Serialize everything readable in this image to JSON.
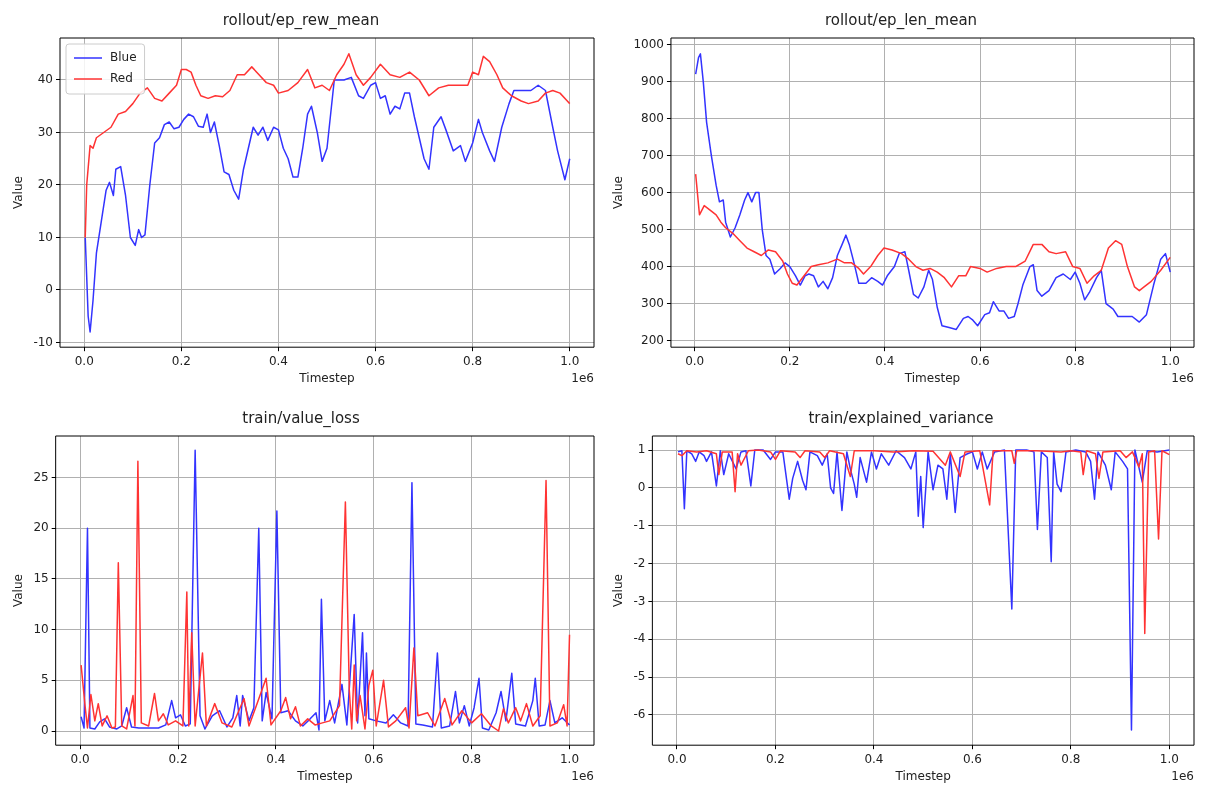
{
  "chart_data": [
    {
      "type": "line",
      "title": "rollout/ep_rew_mean",
      "xlabel": "Timestep",
      "ylabel": "Value",
      "annotations": [
        "1e6"
      ],
      "grid": true,
      "legend": "top left",
      "xlim": [
        -0.05,
        1.05
      ],
      "xticks": [
        {
          "value": 0,
          "label": "0.0"
        },
        {
          "value": 0.2,
          "label": "0.2"
        },
        {
          "value": 0.4,
          "label": "0.4"
        },
        {
          "value": 0.6,
          "label": "0.6"
        },
        {
          "value": 0.8,
          "label": "0.8"
        },
        {
          "value": 1,
          "label": "1.0"
        }
      ],
      "ylim": [
        -10.9,
        48
      ],
      "yticks": [
        -10,
        0,
        10,
        20,
        30,
        40
      ],
      "series": [
        {
          "name": "Blue",
          "color": "#3333ff",
          "x": [
            0.002,
            0.008,
            0.012,
            0.018,
            0.025,
            0.035,
            0.045,
            0.052,
            0.06,
            0.065,
            0.075,
            0.085,
            0.095,
            0.105,
            0.112,
            0.118,
            0.125,
            0.135,
            0.145,
            0.155,
            0.165,
            0.175,
            0.185,
            0.195,
            0.205,
            0.215,
            0.225,
            0.235,
            0.245,
            0.253,
            0.26,
            0.268,
            0.278,
            0.288,
            0.298,
            0.308,
            0.318,
            0.328,
            0.338,
            0.348,
            0.358,
            0.368,
            0.378,
            0.39,
            0.4,
            0.41,
            0.42,
            0.43,
            0.44,
            0.45,
            0.46,
            0.468,
            0.48,
            0.49,
            0.5,
            0.515,
            0.535,
            0.55,
            0.565,
            0.575,
            0.59,
            0.6,
            0.61,
            0.62,
            0.63,
            0.64,
            0.65,
            0.66,
            0.67,
            0.68,
            0.69,
            0.7,
            0.71,
            0.72,
            0.735,
            0.745,
            0.76,
            0.775,
            0.785,
            0.8,
            0.812,
            0.82,
            0.835,
            0.845,
            0.86,
            0.875,
            0.885,
            0.9,
            0.92,
            0.935,
            0.95,
            0.965,
            0.975,
            0.99,
            1.0
          ],
          "values": [
            10,
            -5,
            -8,
            -2,
            7,
            13,
            19,
            20.5,
            18,
            23,
            23.5,
            18,
            10,
            8.5,
            11.5,
            10,
            10.5,
            20,
            28,
            29,
            31.5,
            32,
            30.7,
            31,
            32.5,
            33.5,
            33,
            31.2,
            31,
            33.5,
            30,
            32,
            27.5,
            22.5,
            22,
            19,
            17.3,
            23,
            27,
            31,
            29.5,
            31,
            28.5,
            31,
            30.5,
            27,
            25,
            21.5,
            21.5,
            27,
            33.5,
            35,
            30,
            24.5,
            27,
            40,
            40,
            40.5,
            37,
            36.5,
            39,
            39.5,
            36.5,
            37,
            33.5,
            35,
            34.5,
            37.5,
            37.5,
            33,
            29,
            25,
            23,
            31,
            33,
            30.5,
            26.5,
            27.5,
            24.5,
            28,
            32.5,
            30,
            26.5,
            24.5,
            31,
            35.5,
            38,
            38,
            38,
            39,
            38,
            31,
            26.5,
            21,
            25
          ]
        },
        {
          "name": "Red",
          "color": "#ff3333",
          "x": [
            0.002,
            0.005,
            0.012,
            0.018,
            0.025,
            0.04,
            0.055,
            0.07,
            0.085,
            0.1,
            0.115,
            0.13,
            0.145,
            0.16,
            0.175,
            0.19,
            0.2,
            0.21,
            0.22,
            0.23,
            0.24,
            0.255,
            0.27,
            0.285,
            0.3,
            0.315,
            0.33,
            0.345,
            0.36,
            0.375,
            0.39,
            0.4,
            0.42,
            0.44,
            0.46,
            0.475,
            0.49,
            0.505,
            0.52,
            0.535,
            0.545,
            0.56,
            0.575,
            0.59,
            0.61,
            0.63,
            0.65,
            0.67,
            0.69,
            0.71,
            0.73,
            0.75,
            0.77,
            0.79,
            0.8,
            0.812,
            0.822,
            0.835,
            0.85,
            0.862,
            0.88,
            0.9,
            0.915,
            0.935,
            0.95,
            0.965,
            0.98,
            0.995,
            1.0
          ],
          "values": [
            10,
            20,
            27.5,
            27,
            29,
            30,
            31,
            33.5,
            34,
            35.5,
            37.5,
            38.5,
            36.5,
            36,
            37.5,
            39,
            42,
            42,
            41.5,
            39,
            37,
            36.5,
            37,
            36.8,
            38,
            41,
            41,
            42.5,
            41,
            39.5,
            39,
            37.5,
            38,
            39.5,
            42,
            38.5,
            39,
            38,
            41,
            43,
            45,
            41,
            39,
            40.5,
            43,
            41,
            40.5,
            41.5,
            40,
            37,
            38.5,
            39,
            39,
            39,
            41.5,
            41,
            44.5,
            43.5,
            41,
            38.5,
            37,
            36,
            35.5,
            36,
            37.5,
            38,
            37.5,
            36,
            35.5
          ]
        }
      ]
    },
    {
      "type": "line",
      "title": "rollout/ep_len_mean",
      "xlabel": "Timestep",
      "ylabel": "Value",
      "annotations": [
        "1e6"
      ],
      "grid": true,
      "xlim": [
        -0.05,
        1.05
      ],
      "xticks": [
        {
          "value": 0,
          "label": "0.0"
        },
        {
          "value": 0.2,
          "label": "0.2"
        },
        {
          "value": 0.4,
          "label": "0.4"
        },
        {
          "value": 0.6,
          "label": "0.6"
        },
        {
          "value": 0.8,
          "label": "0.8"
        },
        {
          "value": 1,
          "label": "1.0"
        }
      ],
      "ylim": [
        182,
        1018
      ],
      "yticks": [
        200,
        300,
        400,
        500,
        600,
        700,
        800,
        900,
        1000
      ],
      "series": [
        {
          "color": "#3333ff",
          "x": [
            0.002,
            0.008,
            0.012,
            0.018,
            0.025,
            0.035,
            0.045,
            0.052,
            0.06,
            0.065,
            0.075,
            0.085,
            0.095,
            0.105,
            0.112,
            0.12,
            0.128,
            0.135,
            0.142,
            0.15,
            0.158,
            0.168,
            0.18,
            0.19,
            0.2,
            0.212,
            0.222,
            0.232,
            0.24,
            0.25,
            0.26,
            0.27,
            0.28,
            0.29,
            0.3,
            0.31,
            0.318,
            0.325,
            0.335,
            0.345,
            0.36,
            0.372,
            0.385,
            0.395,
            0.405,
            0.42,
            0.43,
            0.442,
            0.45,
            0.46,
            0.47,
            0.482,
            0.492,
            0.5,
            0.51,
            0.52,
            0.535,
            0.55,
            0.565,
            0.575,
            0.585,
            0.595,
            0.61,
            0.62,
            0.628,
            0.64,
            0.65,
            0.66,
            0.672,
            0.68,
            0.69,
            0.705,
            0.712,
            0.72,
            0.73,
            0.745,
            0.76,
            0.775,
            0.79,
            0.8,
            0.81,
            0.82,
            0.83,
            0.845,
            0.855,
            0.865,
            0.88,
            0.89,
            0.905,
            0.92,
            0.935,
            0.95,
            0.965,
            0.98,
            0.99,
            1.0
          ],
          "values": [
            920,
            965,
            975,
            900,
            790,
            700,
            620,
            575,
            580,
            520,
            480,
            505,
            540,
            580,
            600,
            575,
            600,
            600,
            500,
            430,
            420,
            380,
            395,
            410,
            400,
            375,
            350,
            375,
            380,
            375,
            345,
            360,
            340,
            370,
            430,
            460,
            485,
            460,
            410,
            355,
            355,
            370,
            360,
            350,
            375,
            400,
            435,
            440,
            390,
            325,
            315,
            345,
            390,
            365,
            290,
            240,
            235,
            230,
            260,
            265,
            255,
            240,
            270,
            275,
            305,
            280,
            280,
            260,
            265,
            300,
            350,
            400,
            405,
            335,
            320,
            335,
            370,
            380,
            365,
            385,
            355,
            310,
            330,
            370,
            390,
            300,
            285,
            265,
            265,
            265,
            250,
            270,
            350,
            420,
            435,
            385
          ]
        },
        {
          "color": "#ff3333",
          "x": [
            0.002,
            0.01,
            0.02,
            0.035,
            0.045,
            0.055,
            0.065,
            0.08,
            0.095,
            0.11,
            0.125,
            0.14,
            0.155,
            0.17,
            0.185,
            0.195,
            0.205,
            0.215,
            0.23,
            0.245,
            0.26,
            0.28,
            0.3,
            0.315,
            0.33,
            0.345,
            0.355,
            0.37,
            0.385,
            0.398,
            0.415,
            0.435,
            0.45,
            0.465,
            0.48,
            0.495,
            0.51,
            0.525,
            0.54,
            0.555,
            0.57,
            0.58,
            0.6,
            0.615,
            0.635,
            0.655,
            0.675,
            0.695,
            0.712,
            0.73,
            0.745,
            0.76,
            0.78,
            0.795,
            0.81,
            0.825,
            0.84,
            0.855,
            0.87,
            0.885,
            0.898,
            0.91,
            0.925,
            0.935,
            0.945,
            0.96,
            0.98,
            1.0
          ],
          "values": [
            650,
            540,
            565,
            550,
            540,
            520,
            505,
            490,
            470,
            450,
            440,
            430,
            445,
            440,
            415,
            380,
            355,
            350,
            375,
            400,
            405,
            410,
            420,
            410,
            410,
            395,
            380,
            400,
            430,
            450,
            445,
            435,
            420,
            400,
            390,
            395,
            385,
            370,
            345,
            375,
            375,
            400,
            395,
            385,
            395,
            400,
            400,
            415,
            460,
            460,
            440,
            435,
            440,
            400,
            395,
            355,
            375,
            390,
            450,
            470,
            460,
            400,
            345,
            335,
            345,
            360,
            390,
            425
          ]
        }
      ]
    },
    {
      "type": "line",
      "title": "train/value_loss",
      "xlabel": "Timestep",
      "ylabel": "Value",
      "annotations": [
        "1e6"
      ],
      "grid": true,
      "xlim": [
        -0.05,
        1.05
      ],
      "xticks": [
        {
          "value": 0,
          "label": "0.0"
        },
        {
          "value": 0.2,
          "label": "0.2"
        },
        {
          "value": 0.4,
          "label": "0.4"
        },
        {
          "value": 0.6,
          "label": "0.6"
        },
        {
          "value": 0.8,
          "label": "0.8"
        },
        {
          "value": 1,
          "label": "1.0"
        }
      ],
      "ylim": [
        -1.4,
        29.1
      ],
      "yticks": [
        0,
        5,
        10,
        15,
        20,
        25
      ],
      "series": [
        {
          "color": "#3333ff",
          "x": [
            0.002,
            0.008,
            0.015,
            0.02,
            0.03,
            0.04,
            0.05,
            0.06,
            0.075,
            0.085,
            0.095,
            0.105,
            0.12,
            0.14,
            0.16,
            0.175,
            0.187,
            0.195,
            0.205,
            0.215,
            0.225,
            0.235,
            0.245,
            0.255,
            0.27,
            0.285,
            0.3,
            0.312,
            0.32,
            0.327,
            0.332,
            0.345,
            0.355,
            0.365,
            0.372,
            0.38,
            0.392,
            0.402,
            0.41,
            0.425,
            0.44,
            0.455,
            0.47,
            0.482,
            0.488,
            0.493,
            0.5,
            0.51,
            0.52,
            0.535,
            0.545,
            0.56,
            0.567,
            0.577,
            0.582,
            0.585,
            0.59,
            0.605,
            0.625,
            0.64,
            0.655,
            0.67,
            0.678,
            0.686,
            0.7,
            0.72,
            0.73,
            0.738,
            0.755,
            0.767,
            0.775,
            0.785,
            0.795,
            0.805,
            0.815,
            0.822,
            0.835,
            0.85,
            0.86,
            0.87,
            0.882,
            0.89,
            0.91,
            0.925,
            0.93,
            0.938,
            0.95,
            0.96,
            0.97,
            0.985,
            1.0
          ],
          "values": [
            1.4,
            0.3,
            20,
            0.3,
            0.2,
            0.9,
            1.2,
            0.4,
            0.2,
            0.5,
            2.3,
            0.4,
            0.3,
            0.3,
            0.3,
            0.6,
            3,
            1.3,
            1.6,
            0.5,
            0.7,
            27.7,
            1.5,
            0.2,
            1.5,
            2,
            0.4,
            1.3,
            3.5,
            0.5,
            3.5,
            1,
            2.3,
            20,
            1,
            3.8,
            1.2,
            21.7,
            1.8,
            2,
            1,
            0.5,
            1.2,
            1.8,
            0.1,
            13,
            1,
            3,
            0.8,
            4.6,
            0.6,
            11.5,
            0.8,
            9.7,
            1.5,
            7.7,
            1.2,
            1,
            0.8,
            1.6,
            0.8,
            0.5,
            24.5,
            0.7,
            0.6,
            0.4,
            7.7,
            0.3,
            0.5,
            3.9,
            0.8,
            2.5,
            0.5,
            2.3,
            5.2,
            0.3,
            0.1,
            1.8,
            3.9,
            1,
            5.7,
            0.7,
            0.5,
            3,
            5.2,
            0.5,
            0.6,
            3,
            0.8,
            1.3,
            0.6
          ]
        },
        {
          "color": "#ff3333",
          "x": [
            0.002,
            0.01,
            0.015,
            0.022,
            0.03,
            0.037,
            0.045,
            0.055,
            0.065,
            0.072,
            0.078,
            0.085,
            0.095,
            0.108,
            0.112,
            0.118,
            0.125,
            0.14,
            0.152,
            0.16,
            0.17,
            0.18,
            0.195,
            0.21,
            0.218,
            0.222,
            0.228,
            0.235,
            0.25,
            0.258,
            0.275,
            0.29,
            0.31,
            0.335,
            0.345,
            0.36,
            0.38,
            0.39,
            0.41,
            0.42,
            0.43,
            0.44,
            0.45,
            0.465,
            0.48,
            0.495,
            0.51,
            0.53,
            0.542,
            0.55,
            0.555,
            0.56,
            0.565,
            0.572,
            0.582,
            0.59,
            0.598,
            0.605,
            0.62,
            0.63,
            0.645,
            0.665,
            0.672,
            0.682,
            0.69,
            0.71,
            0.725,
            0.745,
            0.76,
            0.78,
            0.8,
            0.82,
            0.84,
            0.855,
            0.865,
            0.875,
            0.89,
            0.9,
            0.912,
            0.925,
            0.94,
            0.952,
            0.96,
            0.975,
            0.988,
            0.995,
            1.0
          ],
          "values": [
            6.5,
            2.5,
            0.3,
            3.6,
            1,
            2.7,
            0.5,
            1.5,
            0.3,
            0.4,
            16.6,
            0.5,
            0.2,
            3.5,
            0.5,
            26.6,
            0.8,
            0.5,
            3.7,
            1,
            1.7,
            0.6,
            1,
            0.5,
            13.7,
            0.5,
            9.7,
            0.5,
            7.7,
            0.5,
            2.7,
            0.8,
            0.4,
            3.2,
            0.5,
            2.5,
            5.2,
            0.6,
            2,
            3.3,
            1.2,
            2.4,
            0.5,
            1.2,
            0.6,
            0.8,
            1,
            2.5,
            22.6,
            4,
            0.2,
            6.5,
            1,
            3.5,
            0.2,
            4.5,
            6,
            0.5,
            5,
            0.4,
            1,
            2.3,
            0.3,
            8.2,
            1.5,
            1.8,
            0.5,
            3.2,
            0.6,
            2,
            0.8,
            1.7,
            0.5,
            0,
            2.2,
            0.8,
            2.3,
            1,
            2.7,
            0.5,
            1.5,
            24.7,
            0.5,
            0.8,
            2.6,
            0.5,
            9.5
          ]
        }
      ]
    },
    {
      "type": "line",
      "title": "train/explained_variance",
      "xlabel": "Timestep",
      "ylabel": "Value",
      "annotations": [
        "1e6"
      ],
      "grid": true,
      "xlim": [
        -0.05,
        1.05
      ],
      "xticks": [
        {
          "value": 0,
          "label": "0.0"
        },
        {
          "value": 0.2,
          "label": "0.2"
        },
        {
          "value": 0.4,
          "label": "0.4"
        },
        {
          "value": 0.6,
          "label": "0.6"
        },
        {
          "value": 0.8,
          "label": "0.8"
        },
        {
          "value": 1,
          "label": "1.0"
        }
      ],
      "ylim": [
        -6.8,
        1.37
      ],
      "yticks": [
        -6,
        -5,
        -4,
        -3,
        -2,
        -1,
        0,
        1
      ],
      "series": [
        {
          "color": "#3333ff",
          "x": [
            0.002,
            0.01,
            0.015,
            0.02,
            0.03,
            0.038,
            0.045,
            0.055,
            0.06,
            0.07,
            0.08,
            0.088,
            0.095,
            0.105,
            0.12,
            0.13,
            0.14,
            0.15,
            0.158,
            0.175,
            0.19,
            0.2,
            0.215,
            0.228,
            0.235,
            0.245,
            0.255,
            0.262,
            0.27,
            0.285,
            0.295,
            0.305,
            0.312,
            0.318,
            0.325,
            0.335,
            0.345,
            0.352,
            0.36,
            0.365,
            0.372,
            0.385,
            0.395,
            0.405,
            0.415,
            0.43,
            0.445,
            0.462,
            0.475,
            0.485,
            0.49,
            0.495,
            0.5,
            0.51,
            0.52,
            0.53,
            0.54,
            0.548,
            0.555,
            0.565,
            0.575,
            0.59,
            0.6,
            0.61,
            0.62,
            0.63,
            0.645,
            0.665,
            0.68,
            0.688,
            0.71,
            0.725,
            0.732,
            0.74,
            0.752,
            0.76,
            0.765,
            0.772,
            0.78,
            0.79,
            0.81,
            0.83,
            0.84,
            0.848,
            0.855,
            0.87,
            0.882,
            0.89,
            0.905,
            0.915,
            0.923,
            0.93,
            0.945,
            0.955,
            0.975,
            1.0
          ],
          "values": [
            0.95,
            0.98,
            -0.55,
            0.98,
            0.9,
            0.7,
            0.95,
            0.85,
            0.7,
            0.95,
            0.05,
            0.98,
            0.35,
            0.9,
            0.5,
            0.95,
            0.98,
            0.05,
            1,
            1,
            0.75,
            0.95,
            0.95,
            -0.3,
            0.25,
            0.7,
            0.2,
            -0.05,
            0.95,
            0.85,
            0.6,
            0.9,
            0,
            -0.15,
            0.95,
            -0.6,
            0.95,
            0.5,
            0.1,
            -0.25,
            0.8,
            0.15,
            0.95,
            0.5,
            0.9,
            0.6,
            0.98,
            0.8,
            0.5,
            0.95,
            -0.75,
            0.3,
            -1.05,
            0.95,
            -0.05,
            0.6,
            0.5,
            -0.3,
            0.9,
            -0.65,
            0.8,
            0.9,
            0.95,
            0.5,
            0.95,
            0.5,
            0.95,
            1,
            -3.2,
            1,
            1,
            0.95,
            -1.1,
            0.95,
            0.8,
            -1.95,
            0.95,
            0.1,
            -0.1,
            0.95,
            1,
            0.95,
            0.7,
            -0.3,
            0.95,
            0.6,
            -0.05,
            0.95,
            0.7,
            0.5,
            -6.4,
            1,
            0.15,
            0.98,
            0.95,
            1
          ]
        },
        {
          "color": "#ff3333",
          "x": [
            0.002,
            0.01,
            0.02,
            0.04,
            0.06,
            0.08,
            0.085,
            0.092,
            0.112,
            0.118,
            0.123,
            0.13,
            0.145,
            0.165,
            0.19,
            0.2,
            0.21,
            0.24,
            0.25,
            0.26,
            0.29,
            0.3,
            0.31,
            0.338,
            0.352,
            0.36,
            0.4,
            0.44,
            0.48,
            0.52,
            0.545,
            0.555,
            0.575,
            0.585,
            0.615,
            0.635,
            0.642,
            0.68,
            0.685,
            0.69,
            0.73,
            0.78,
            0.8,
            0.82,
            0.825,
            0.832,
            0.85,
            0.857,
            0.865,
            0.9,
            0.912,
            0.925,
            0.938,
            0.945,
            0.95,
            0.958,
            0.97,
            0.978,
            0.985,
            1.0
          ],
          "values": [
            0.9,
            0.85,
            0.98,
            0.95,
            0.98,
            0.9,
            0.35,
            0.95,
            0.95,
            -0.1,
            0.9,
            0.6,
            0.98,
            1,
            0.95,
            0.75,
            0.98,
            0.95,
            0.8,
            0.98,
            0.95,
            0.8,
            0.98,
            0.9,
            0.3,
            0.98,
            0.98,
            0.95,
            0.98,
            0.97,
            0.6,
            0.95,
            0.3,
            0.95,
            0.98,
            -0.45,
            0.98,
            0.98,
            0.65,
            0.98,
            0.98,
            0.95,
            0.98,
            0.95,
            0.35,
            0.98,
            0.9,
            0.25,
            0.95,
            0.98,
            0.8,
            0.95,
            0.55,
            0.9,
            -3.85,
            0.95,
            0.98,
            -1.35,
            0.98,
            0.88
          ]
        }
      ]
    }
  ]
}
